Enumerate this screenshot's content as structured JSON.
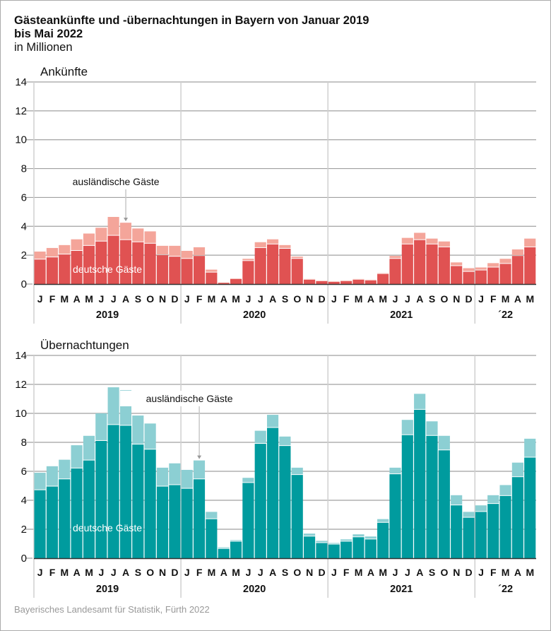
{
  "title": "Gästeankünfte und -übernachtungen in Bayern von Januar 2019 bis Mai 2022",
  "title_line1": "Gästeankünfte und -übernachtungen in Bayern von Januar 2019",
  "title_line2": "bis Mai 2022",
  "subtitle": "in Millionen",
  "source": "Bayerisches Landesamt für Statistik, Fürth 2022",
  "months": [
    "J",
    "F",
    "M",
    "A",
    "M",
    "J",
    "J",
    "A",
    "S",
    "O",
    "N",
    "D",
    "J",
    "F",
    "M",
    "A",
    "M",
    "J",
    "J",
    "A",
    "S",
    "O",
    "N",
    "D",
    "J",
    "F",
    "M",
    "A",
    "M",
    "J",
    "J",
    "A",
    "S",
    "O",
    "N",
    "D",
    "J",
    "F",
    "M",
    "A",
    "M"
  ],
  "years": [
    {
      "label": "2019",
      "start": 0,
      "count": 12
    },
    {
      "label": "2020",
      "start": 12,
      "count": 12
    },
    {
      "label": "2021",
      "start": 24,
      "count": 12
    },
    {
      "label": "´22",
      "start": 36,
      "count": 5
    }
  ],
  "chart_data": [
    {
      "type": "bar",
      "stacked": true,
      "title": "Ankünfte",
      "ylabel": "in Millionen",
      "ylim": [
        0,
        14
      ],
      "yticks": [
        0,
        2,
        4,
        6,
        8,
        10,
        12,
        14
      ],
      "grid": true,
      "colors": {
        "deutsche": "#e05252",
        "auslaendische": "#f4a59a"
      },
      "annotations": {
        "foreign": "ausländische Gäste",
        "foreign_index": 7,
        "domestic": "deutsche Gäste"
      },
      "series": [
        {
          "name": "deutsche Gäste",
          "values": [
            1.7,
            1.85,
            2.05,
            2.3,
            2.65,
            2.95,
            3.35,
            3.05,
            2.9,
            2.8,
            2.0,
            1.9,
            1.75,
            1.95,
            0.8,
            0.08,
            0.35,
            1.6,
            2.5,
            2.75,
            2.45,
            1.75,
            0.3,
            0.2,
            0.15,
            0.2,
            0.3,
            0.25,
            0.7,
            1.75,
            2.75,
            3.05,
            2.75,
            2.55,
            1.25,
            0.85,
            0.95,
            1.15,
            1.4,
            1.95,
            2.55
          ]
        },
        {
          "name": "ausländische Gäste",
          "values": [
            0.55,
            0.65,
            0.65,
            0.8,
            0.85,
            0.95,
            1.3,
            1.2,
            0.95,
            0.85,
            0.65,
            0.75,
            0.55,
            0.6,
            0.2,
            0.02,
            0.03,
            0.15,
            0.4,
            0.35,
            0.25,
            0.15,
            0.05,
            0.02,
            0.03,
            0.05,
            0.05,
            0.05,
            0.05,
            0.2,
            0.45,
            0.5,
            0.4,
            0.4,
            0.25,
            0.25,
            0.2,
            0.3,
            0.35,
            0.45,
            0.6
          ]
        }
      ]
    },
    {
      "type": "bar",
      "stacked": true,
      "title": "Übernachtungen",
      "ylabel": "in Millionen",
      "ylim": [
        0,
        14
      ],
      "yticks": [
        0,
        2,
        4,
        6,
        8,
        10,
        12,
        14
      ],
      "grid": true,
      "colors": {
        "deutsche": "#009b9e",
        "auslaendische": "#8ccfd3"
      },
      "annotations": {
        "foreign": "ausländische Gäste",
        "foreign_index": 13,
        "domestic": "deutsche Gäste"
      },
      "series": [
        {
          "name": "deutsche Gäste",
          "values": [
            4.7,
            4.95,
            5.45,
            6.2,
            6.75,
            8.1,
            9.2,
            9.15,
            7.85,
            7.5,
            4.95,
            5.05,
            4.8,
            5.45,
            2.7,
            0.65,
            1.15,
            5.2,
            7.9,
            9.0,
            7.75,
            5.75,
            1.5,
            1.05,
            0.95,
            1.15,
            1.45,
            1.3,
            2.45,
            5.8,
            8.5,
            10.25,
            8.45,
            7.45,
            3.65,
            2.8,
            3.2,
            3.75,
            4.3,
            5.6,
            6.95
          ]
        },
        {
          "name": "ausländische Gäste",
          "values": [
            1.2,
            1.4,
            1.35,
            1.6,
            1.7,
            1.9,
            2.6,
            2.45,
            2.0,
            1.8,
            1.3,
            1.5,
            1.3,
            1.3,
            0.5,
            0.1,
            0.1,
            0.35,
            0.9,
            0.9,
            0.65,
            0.5,
            0.2,
            0.15,
            0.1,
            0.15,
            0.2,
            0.2,
            0.25,
            0.45,
            1.05,
            1.1,
            1.0,
            1.0,
            0.7,
            0.4,
            0.45,
            0.6,
            0.75,
            1.0,
            1.3
          ]
        }
      ]
    }
  ]
}
